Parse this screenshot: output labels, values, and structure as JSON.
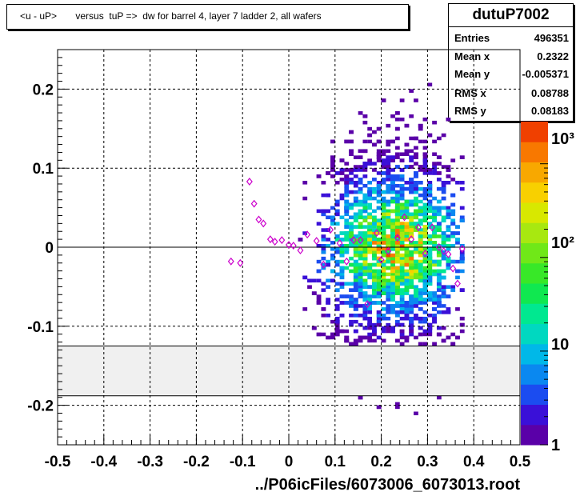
{
  "title": "<u - uP>       versus  tuP =>  dw for barrel 4, layer 7 ladder 2, all wafers",
  "stats": {
    "name": "dutuP7002",
    "rows": [
      {
        "label": "Entries",
        "value": "496351"
      },
      {
        "label": "Mean x",
        "value": "0.2322"
      },
      {
        "label": "Mean y",
        "value": "-0.005371"
      },
      {
        "label": "RMS x",
        "value": "0.08788"
      },
      {
        "label": "RMS y",
        "value": "0.08183"
      }
    ]
  },
  "footer": "../P06icFiles/6073006_6073013.root",
  "colors": {
    "background": "#ffffff",
    "band": "#f0f0f0",
    "profile_marker": "#cc00cc"
  },
  "chart_data": {
    "type": "heatmap",
    "title": "<u - uP>       versus  tuP =>  dw for barrel 4, layer 7 ladder 2, all wafers",
    "xlabel": "../P06icFiles/6073006_6073013.root",
    "ylabel": "",
    "xlim": [
      -0.5,
      0.5
    ],
    "ylim": [
      -0.25,
      0.25
    ],
    "x_ticks": [
      "-0.5",
      "-0.4",
      "-0.3",
      "-0.2",
      "-0.1",
      "0",
      "0.1",
      "0.2",
      "0.3",
      "0.4",
      "0.5"
    ],
    "y_ticks": [
      "-0.2",
      "-0.1",
      "0",
      "0.1",
      "0.2"
    ],
    "grid": true,
    "colorbar": {
      "scale": "log",
      "labels": [
        "1",
        "10",
        "10²",
        "10³"
      ]
    },
    "excluded_band_y": [
      -0.188,
      -0.125
    ],
    "profile": {
      "x": [
        -0.125,
        -0.105,
        -0.085,
        -0.075,
        -0.065,
        -0.055,
        -0.04,
        -0.03,
        -0.015,
        0.0,
        0.01,
        0.025,
        0.04,
        0.06,
        0.075,
        0.09,
        0.11,
        0.125,
        0.14,
        0.155,
        0.17,
        0.19,
        0.2,
        0.215,
        0.235,
        0.25,
        0.265,
        0.28,
        0.295,
        0.31,
        0.325,
        0.335,
        0.345,
        0.355,
        0.365,
        0.375
      ],
      "y": [
        -0.018,
        -0.02,
        0.083,
        0.055,
        0.035,
        0.03,
        0.01,
        0.007,
        0.009,
        0.003,
        0.002,
        -0.004,
        0.016,
        0.008,
        -0.022,
        0.022,
        0.005,
        -0.018,
        0.009,
        0.009,
        -0.072,
        0.018,
        -0.016,
        -0.005,
        0.012,
        0.038,
        0.01,
        0.025,
        -0.008,
        0.025,
        0.0,
        -0.005,
        -0.009,
        -0.027,
        -0.046,
        -0.002
      ]
    }
  }
}
